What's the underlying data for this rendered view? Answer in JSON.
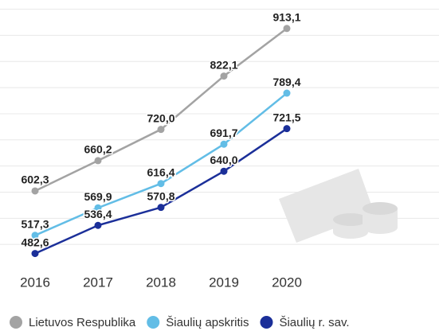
{
  "chart_data": {
    "type": "line",
    "categories": [
      "2016",
      "2017",
      "2018",
      "2019",
      "2020"
    ],
    "series": [
      {
        "name": "Lietuvos Respublika",
        "color": "#a3a3a3",
        "values": [
          602.3,
          660.2,
          720.0,
          822.1,
          913.1
        ],
        "value_labels": [
          "602,3",
          "660,2",
          "720,0",
          "822,1",
          "913,1"
        ]
      },
      {
        "name": "Šiaulių apskritis",
        "color": "#62bde6",
        "values": [
          517.3,
          569.9,
          616.4,
          691.7,
          789.4
        ],
        "value_labels": [
          "517,3",
          "569,9",
          "616,4",
          "691,7",
          "789,4"
        ]
      },
      {
        "name": "Šiaulių r. sav.",
        "color": "#1b2f99",
        "values": [
          482.6,
          536.4,
          570.8,
          640.0,
          721.5
        ],
        "value_labels": [
          "482,6",
          "536,4",
          "570,8",
          "640,0",
          "721,5"
        ]
      }
    ],
    "ylim": [
      450,
      960
    ],
    "yticks": [
      500,
      550,
      600,
      650,
      700,
      750,
      800,
      850,
      900,
      950
    ],
    "grid": true
  }
}
